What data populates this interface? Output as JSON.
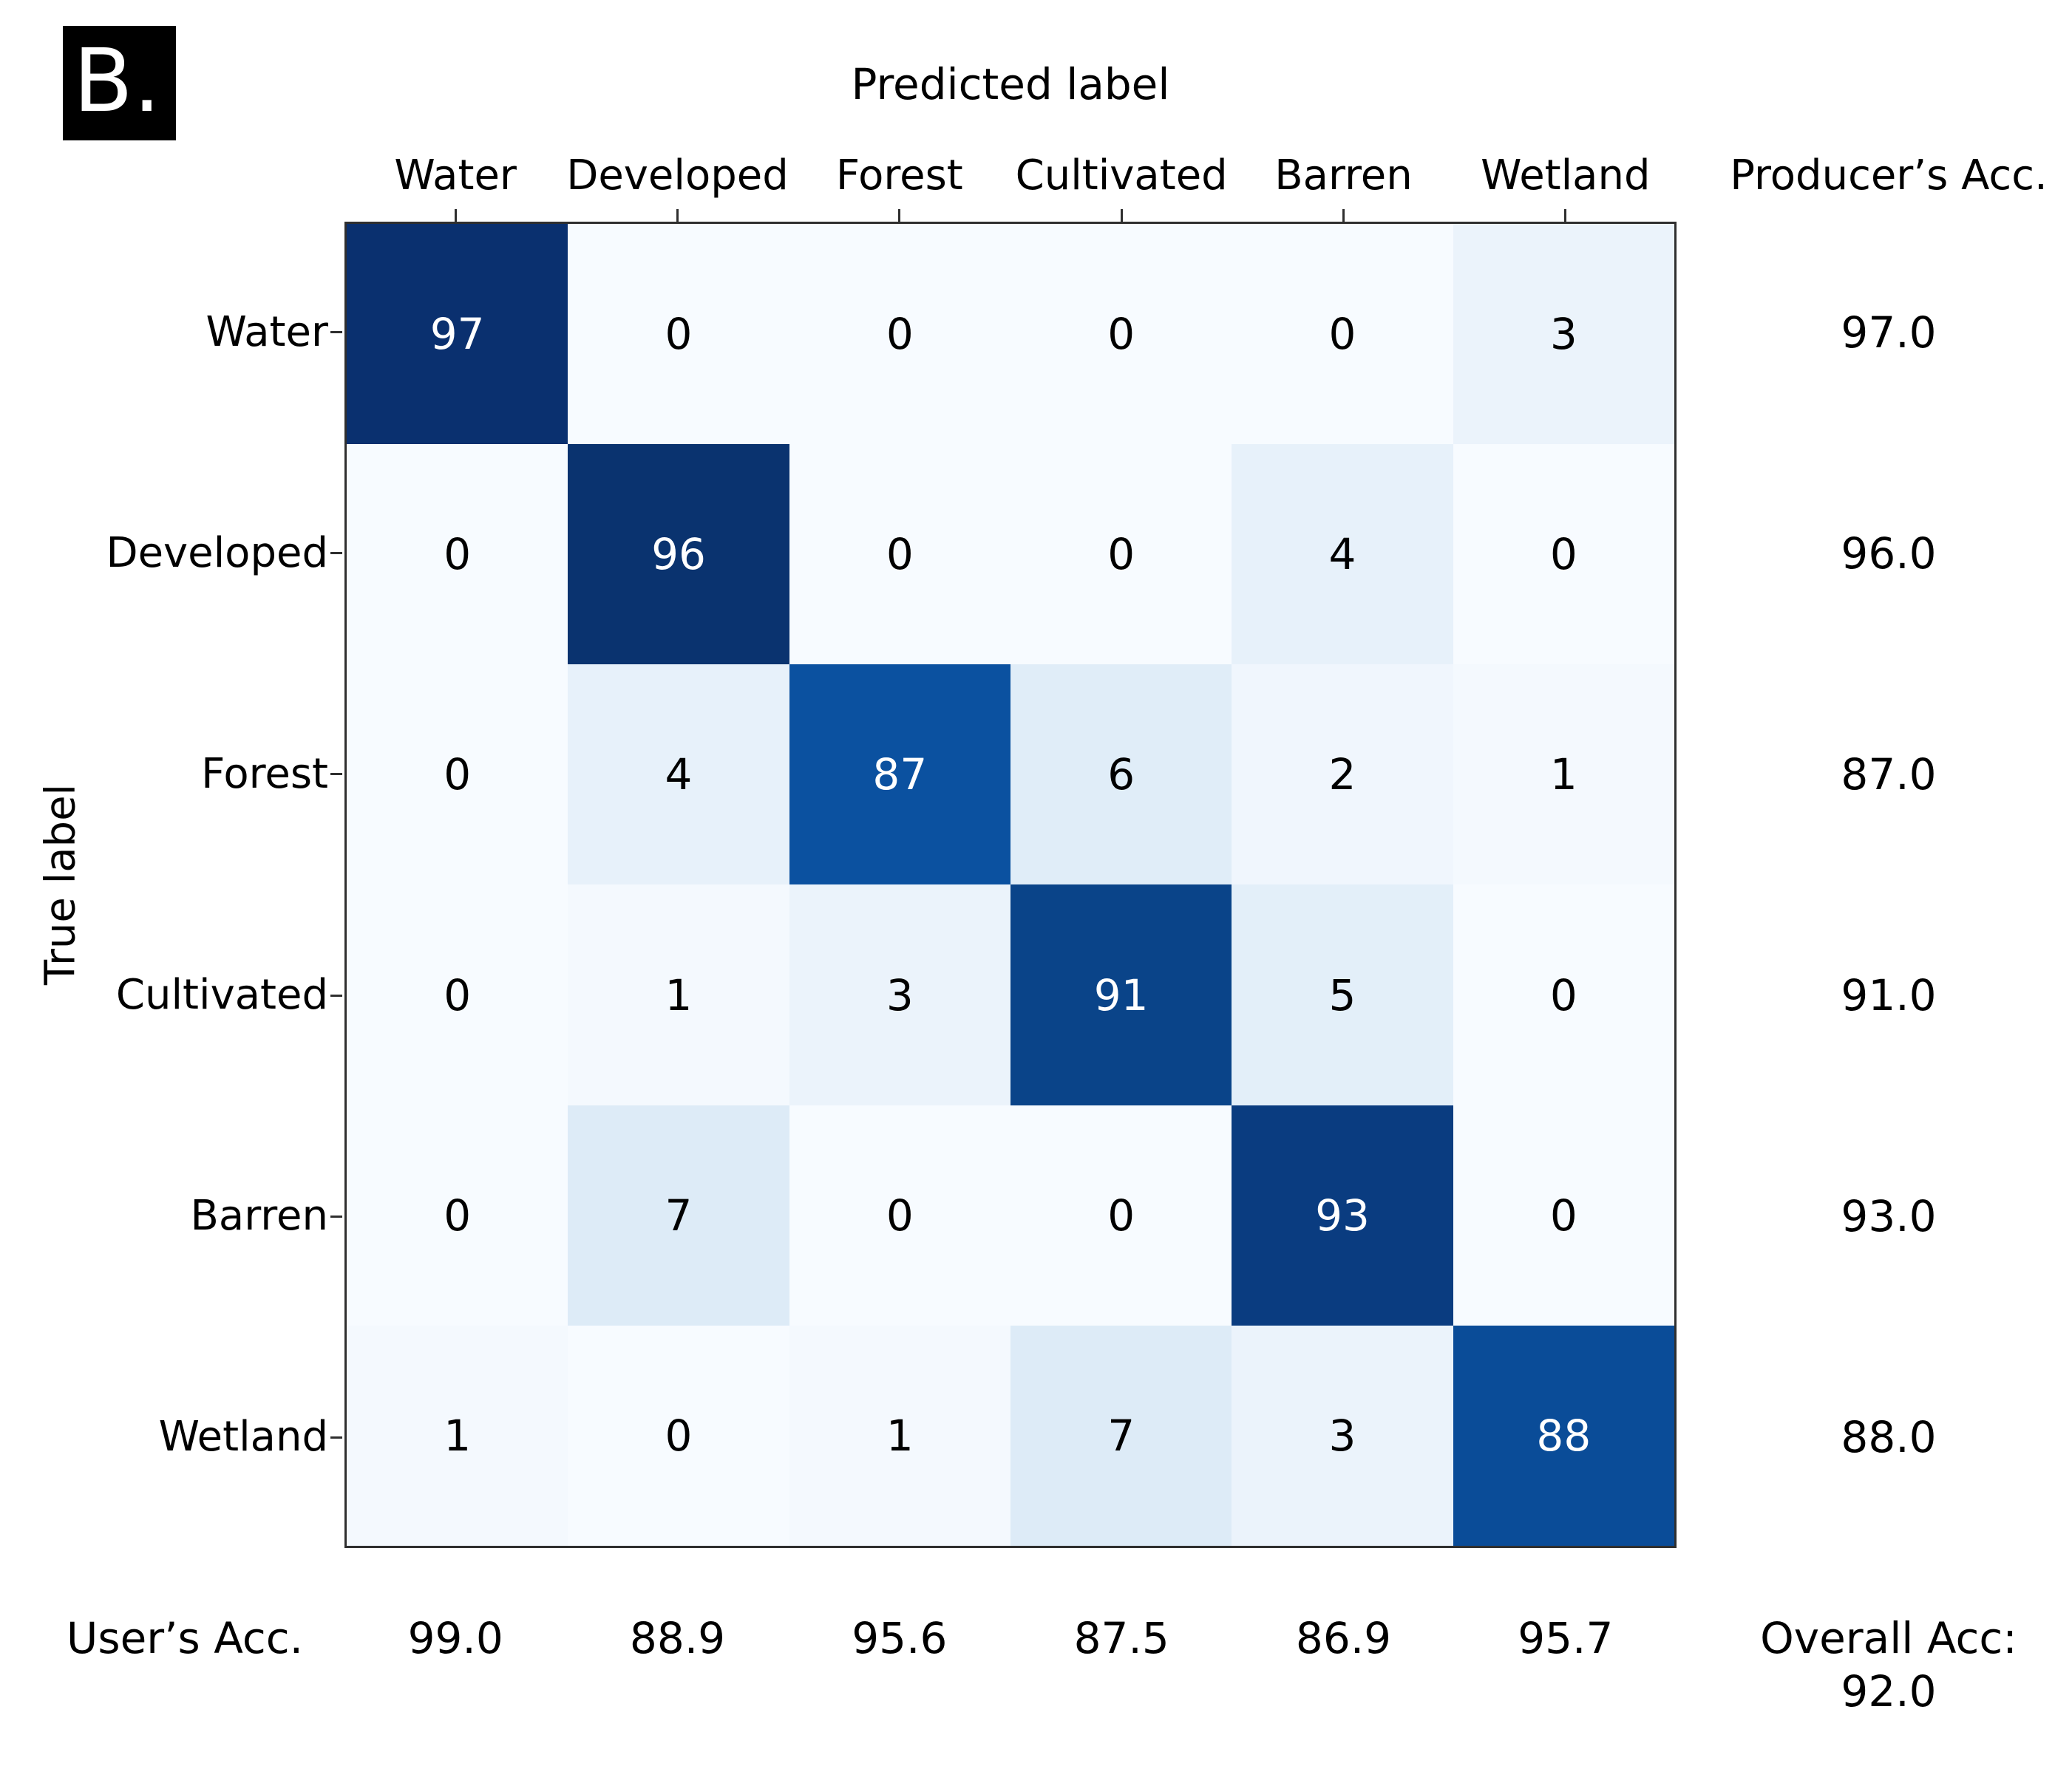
{
  "panel_label": "B.",
  "header": {
    "predicted_label": "Predicted label",
    "producers_acc": "Producer’s Acc."
  },
  "footer": {
    "users_acc": "User’s Acc.",
    "overall_label": "Overall Acc:",
    "overall_value": "92.0"
  },
  "chart_data": {
    "type": "heatmap",
    "title": "Predicted label",
    "xlabel": "Predicted label",
    "ylabel": "True label",
    "x_categories": [
      "Water",
      "Developed",
      "Forest",
      "Cultivated",
      "Barren",
      "Wetland"
    ],
    "y_categories": [
      "Water",
      "Developed",
      "Forest",
      "Cultivated",
      "Barren",
      "Wetland"
    ],
    "matrix": [
      [
        97,
        0,
        0,
        0,
        0,
        3
      ],
      [
        0,
        96,
        0,
        0,
        4,
        0
      ],
      [
        0,
        4,
        87,
        6,
        2,
        1
      ],
      [
        0,
        1,
        3,
        91,
        5,
        0
      ],
      [
        0,
        7,
        0,
        0,
        93,
        0
      ],
      [
        1,
        0,
        1,
        7,
        3,
        88
      ]
    ],
    "producers_acc": [
      "97.0",
      "96.0",
      "87.0",
      "91.0",
      "93.0",
      "88.0"
    ],
    "users_acc": [
      "99.0",
      "88.9",
      "95.6",
      "87.5",
      "86.9",
      "95.7"
    ],
    "overall_acc": "92.0",
    "colormap": "Blues",
    "value_colors": {
      "0": "#f7fbff",
      "1": "#f4f9fe",
      "2": "#f0f6fd",
      "3": "#ebf3fb",
      "4": "#e7f1fa",
      "5": "#e3eff9",
      "6": "#e0edf8",
      "7": "#ddebf7",
      "87": "#0b51a0",
      "88": "#0a4c98",
      "91": "#0a4489",
      "93": "#0a3c80",
      "96": "#0a336f",
      "97": "#0a306f"
    },
    "diagonal_text_color": "#ffffff",
    "offdiagonal_text_color": "#000000",
    "grid": false,
    "legend": false
  }
}
